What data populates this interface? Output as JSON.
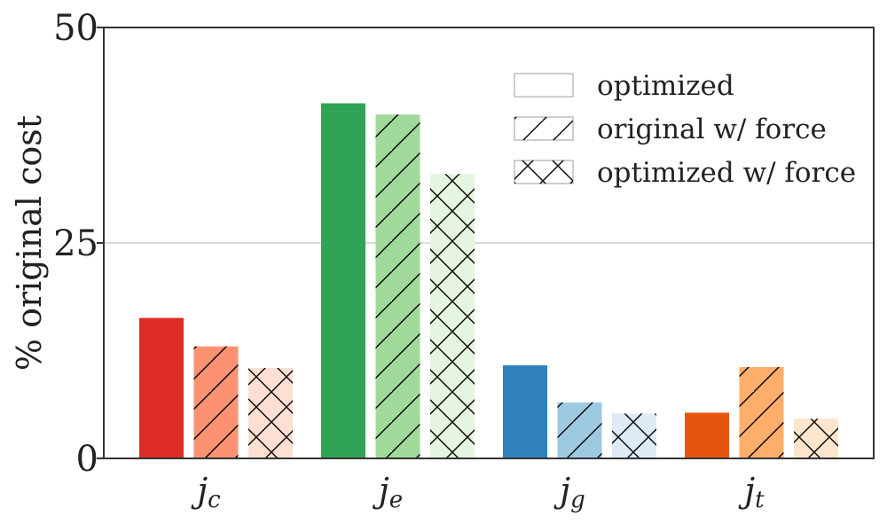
{
  "chart_data": {
    "type": "bar",
    "ylabel": "% original cost",
    "ylim": [
      0,
      50
    ],
    "yticks": [
      0,
      25,
      50
    ],
    "grid": "horizontal at 25",
    "legend": {
      "placement": "top-right",
      "entries": [
        {
          "label": "optimized",
          "hatch": "none"
        },
        {
          "label": "original w/ force",
          "hatch": "diagonal"
        },
        {
          "label": "optimized w/ force",
          "hatch": "cross"
        }
      ]
    },
    "categories": [
      {
        "main": "j",
        "sub": "c"
      },
      {
        "main": "j",
        "sub": "e"
      },
      {
        "main": "j",
        "sub": "g"
      },
      {
        "main": "j",
        "sub": "t"
      }
    ],
    "series": [
      {
        "name": "optimized",
        "values": [
          16.3,
          41.2,
          10.8,
          5.3
        ]
      },
      {
        "name": "original w/ force",
        "values": [
          13.0,
          39.9,
          6.5,
          10.6
        ]
      },
      {
        "name": "optimized w/ force",
        "values": [
          10.5,
          33.0,
          5.2,
          4.6
        ]
      }
    ],
    "colors": [
      [
        "#de2d26",
        "#fc9272",
        "#fee0d2"
      ],
      [
        "#31a354",
        "#a1d99b",
        "#e5f5e0"
      ],
      [
        "#3182bd",
        "#9ecae1",
        "#deebf7"
      ],
      [
        "#e6550d",
        "#fdae6b",
        "#fee6ce"
      ]
    ]
  }
}
